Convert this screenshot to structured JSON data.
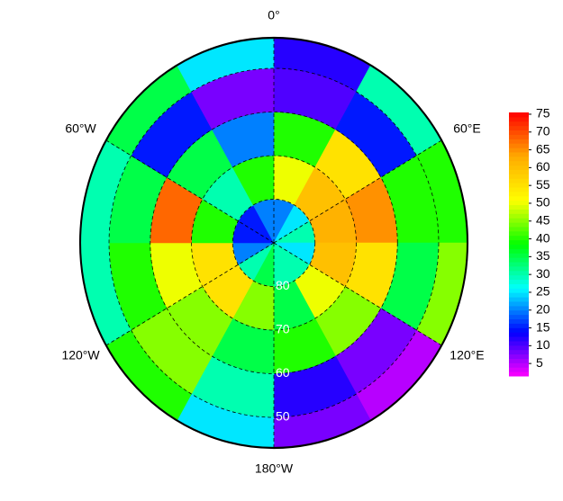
{
  "chart_data": {
    "type": "polar-heatmap",
    "lon_ticks": [
      {
        "value": 0,
        "label": "0°"
      },
      {
        "value": 60,
        "label": "60°E"
      },
      {
        "value": 120,
        "label": "120°E"
      },
      {
        "value": 180,
        "label": "180°W"
      },
      {
        "value": 240,
        "label": "120°W"
      },
      {
        "value": 300,
        "label": "60°W"
      }
    ],
    "lat_ticks": [
      80,
      70,
      60,
      50
    ],
    "rlim": [
      90,
      43
    ],
    "grid": [
      [
        20,
        25,
        30,
        25,
        30,
        30,
        35,
        30,
        20,
        15,
        15,
        20
      ],
      [
        50,
        60,
        62,
        60,
        50,
        35,
        45,
        55,
        55,
        40,
        30,
        40
      ],
      [
        40,
        55,
        65,
        55,
        45,
        40,
        35,
        45,
        50,
        68,
        35,
        20
      ],
      [
        10,
        15,
        40,
        35,
        8,
        12,
        30,
        45,
        40,
        35,
        15,
        8
      ],
      [
        12,
        30,
        40,
        45,
        5,
        8,
        25,
        40,
        30,
        30,
        35,
        25
      ]
    ],
    "colormap": [
      "#ff0000",
      "#ffaa00",
      "#ffff00",
      "#00ff00",
      "#00ffff",
      "#0000ff",
      "#ff00ff"
    ],
    "clim": [
      1.5,
      75.5
    ],
    "cticks": [
      5,
      10,
      15,
      20,
      25,
      30,
      35,
      40,
      45,
      50,
      55,
      60,
      65,
      70,
      75
    ]
  }
}
